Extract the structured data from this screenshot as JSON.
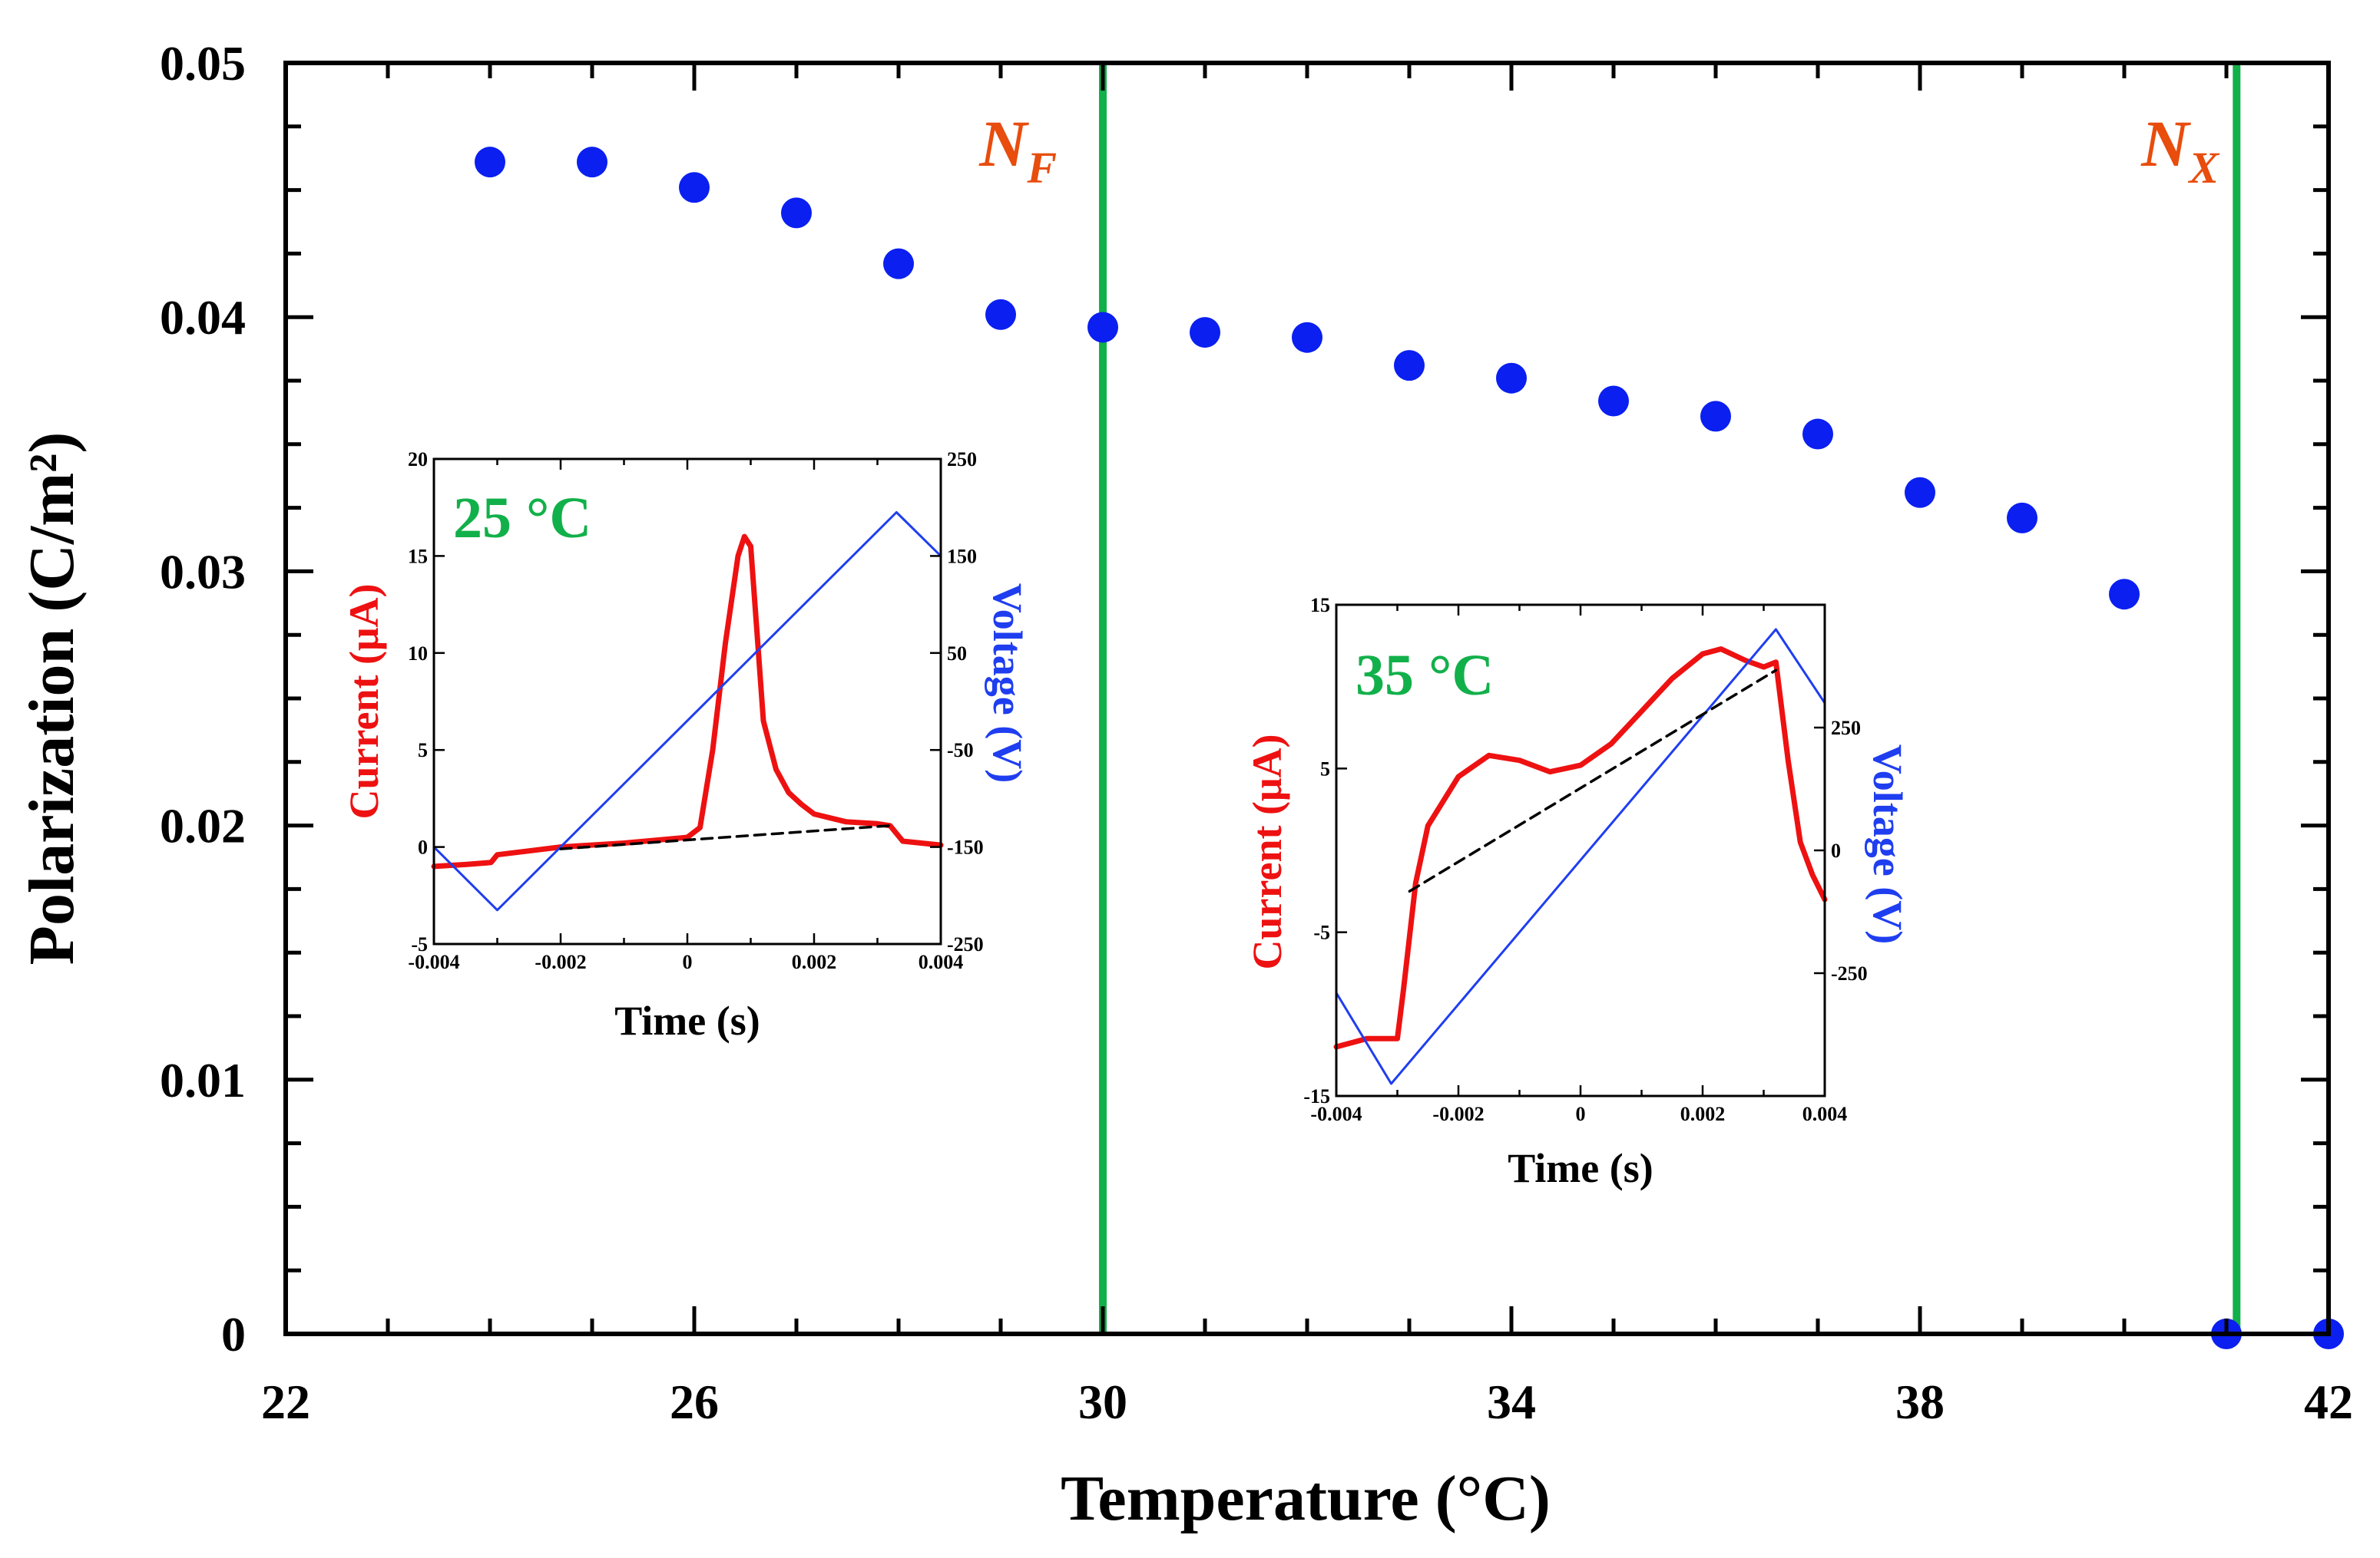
{
  "chart_data": [
    {
      "type": "scatter",
      "xlabel": "Temperature (°C)",
      "ylabel": "Polarization (C/m²)",
      "xlim": [
        22,
        42
      ],
      "ylim": [
        0,
        0.05
      ],
      "x_ticks": [
        "22",
        "26",
        "30",
        "34",
        "38",
        "42"
      ],
      "y_ticks": [
        "0",
        "0.01",
        "0.02",
        "0.03",
        "0.04",
        "0.05"
      ],
      "marker_color": "#0a1ff0",
      "series": [
        {
          "name": "Polarization",
          "x": [
            24,
            25,
            26,
            27,
            28,
            29,
            30,
            31,
            32,
            33,
            34,
            35,
            36,
            37,
            38,
            39,
            40,
            41,
            42
          ],
          "y": [
            0.0461,
            0.0461,
            0.0451,
            0.0441,
            0.0421,
            0.0401,
            0.0396,
            0.0394,
            0.0392,
            0.0381,
            0.0376,
            0.0367,
            0.0361,
            0.0354,
            0.0331,
            0.0321,
            0.0291,
            0.0,
            0.0
          ]
        }
      ],
      "phase_lines": [
        {
          "x": 30,
          "color": "#12b04a"
        },
        {
          "x": 41.1,
          "color": "#12b04a"
        }
      ],
      "annotations": [
        {
          "main": "N",
          "sub": "F",
          "x": 30.0,
          "y": 0.0465,
          "color": "#e84d0e"
        },
        {
          "main": "N",
          "sub": "X",
          "x": 41.0,
          "y": 0.0465,
          "color": "#e84d0e"
        }
      ]
    },
    {
      "type": "line",
      "inset_label": "25 °C",
      "label_color": "#12b04a",
      "xlabel": "Time (s)",
      "ylabel_left": "Current (μA)",
      "ylabel_right": "Voltage (V)",
      "xlim": [
        -0.004,
        0.004
      ],
      "ylim_left": [
        -5,
        20
      ],
      "ylim_right": [
        -250,
        250
      ],
      "x_ticks": [
        "-0.004",
        "-0.002",
        "0",
        "0.002",
        "0.004"
      ],
      "y_ticks_left": [
        "-5",
        "0",
        "5",
        "10",
        "15",
        "20"
      ],
      "y_ticks_right": [
        "-250",
        "-150",
        "-50",
        "50",
        "150",
        "250"
      ],
      "series": [
        {
          "name": "Current",
          "axis": "left",
          "color": "#ee1111",
          "x": [
            -0.004,
            -0.0035,
            -0.0031,
            -0.003,
            -0.0025,
            -0.002,
            -0.001,
            0.0,
            0.0002,
            0.0004,
            0.0006,
            0.0008,
            0.0009,
            0.001,
            0.0011,
            0.0012,
            0.0014,
            0.0016,
            0.0018,
            0.002,
            0.0025,
            0.003,
            0.0032,
            0.0034,
            0.004
          ],
          "y": [
            -1.0,
            -0.9,
            -0.8,
            -0.4,
            -0.2,
            0.0,
            0.2,
            0.5,
            1.0,
            5.0,
            10.5,
            15.0,
            16.0,
            15.5,
            11.0,
            6.5,
            4.0,
            2.8,
            2.2,
            1.7,
            1.3,
            1.2,
            1.1,
            0.3,
            0.1
          ]
        },
        {
          "name": "Voltage",
          "axis": "right",
          "color": "#1f3ef0",
          "x": [
            -0.004,
            -0.003,
            0.0033,
            0.004
          ],
          "y": [
            -150,
            -215,
            195,
            150
          ]
        },
        {
          "name": "Baseline",
          "axis": "left",
          "color": "#000000",
          "dashed": true,
          "x": [
            -0.002,
            0.0032
          ],
          "y": [
            -0.1,
            1.1
          ]
        }
      ]
    },
    {
      "type": "line",
      "inset_label": "35 °C",
      "label_color": "#12b04a",
      "xlabel": "Time (s)",
      "ylabel_left": "Current (μA)",
      "ylabel_right": "Voltage (V)",
      "xlim": [
        -0.004,
        0.004
      ],
      "ylim_left": [
        -15,
        15
      ],
      "ylim_right": [
        -500,
        500
      ],
      "x_ticks": [
        "-0.004",
        "-0.002",
        "0",
        "0.002",
        "0.004"
      ],
      "y_ticks_left": [
        "-15",
        "-5",
        "5",
        "15"
      ],
      "y_ticks_right": [
        "-250",
        "0",
        "250"
      ],
      "series": [
        {
          "name": "Current",
          "axis": "left",
          "color": "#ee1111",
          "x": [
            -0.004,
            -0.0035,
            -0.003,
            -0.0029,
            -0.0027,
            -0.0025,
            -0.002,
            -0.0015,
            -0.001,
            -0.0005,
            0.0,
            0.0005,
            0.001,
            0.0015,
            0.002,
            0.0023,
            0.0027,
            0.003,
            0.0032,
            0.0034,
            0.0036,
            0.0038,
            0.004
          ],
          "y": [
            -12.0,
            -11.5,
            -11.5,
            -8.5,
            -2.0,
            1.5,
            4.5,
            5.8,
            5.5,
            4.8,
            5.2,
            6.5,
            8.5,
            10.5,
            12.0,
            12.3,
            11.6,
            11.2,
            11.5,
            5.5,
            0.5,
            -1.5,
            -3.0
          ]
        },
        {
          "name": "Voltage",
          "axis": "right",
          "color": "#1f3ef0",
          "x": [
            -0.004,
            -0.0031,
            0.0032,
            0.004
          ],
          "y": [
            -290,
            -475,
            450,
            300
          ]
        },
        {
          "name": "Baseline",
          "axis": "left",
          "color": "#000000",
          "dashed": true,
          "x": [
            -0.0028,
            0.0032
          ],
          "y": [
            -2.5,
            11.0
          ]
        }
      ]
    }
  ]
}
